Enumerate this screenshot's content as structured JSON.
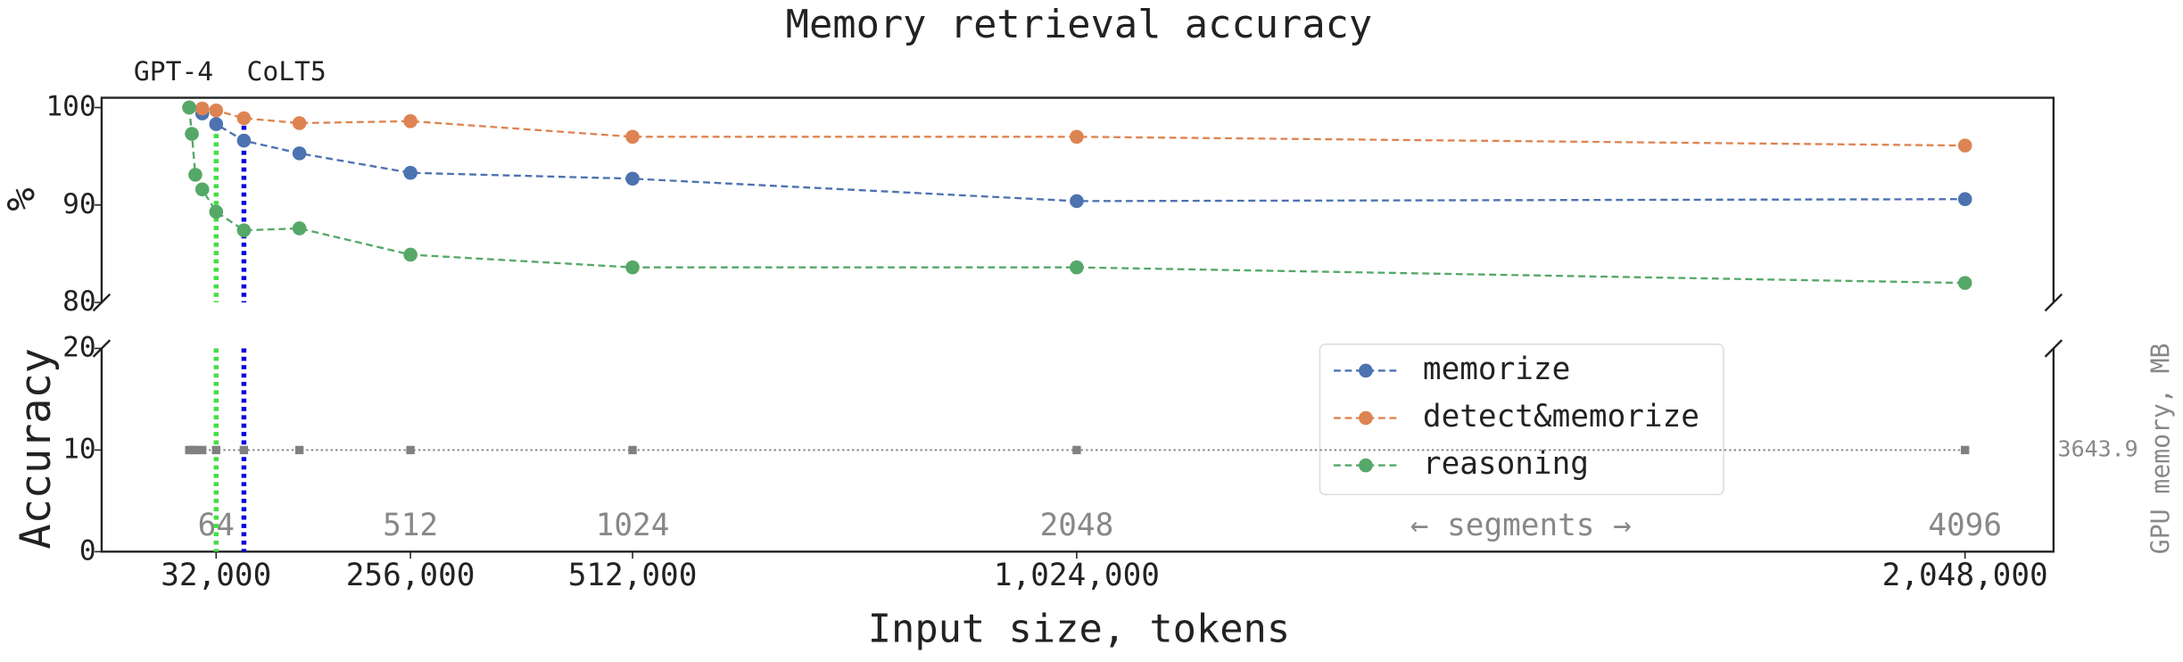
{
  "chart_data": [
    {
      "type": "line",
      "title": "Memory retrieval accuracy",
      "ylabel": "%",
      "xlim": [
        -100000,
        2150000
      ],
      "ylim": [
        80,
        101
      ],
      "yticks": [
        80,
        90,
        100
      ],
      "x": [
        1000,
        4000,
        8000,
        16000,
        32000,
        64000,
        128000,
        256000,
        512000,
        1024000,
        2048000
      ],
      "series": [
        {
          "name": "memorize",
          "color": "#4c72b0",
          "values": [
            100,
            null,
            null,
            99.4,
            98.3,
            96.6,
            95.3,
            93.3,
            92.7,
            90.4,
            90.6
          ]
        },
        {
          "name": "detect&memorize",
          "color": "#dd8452",
          "values": [
            100,
            null,
            null,
            99.9,
            99.7,
            98.9,
            98.4,
            98.6,
            97.0,
            97.0,
            96.1
          ]
        },
        {
          "name": "reasoning",
          "color": "#55a868",
          "values": [
            100,
            97.3,
            93.1,
            91.6,
            89.3,
            87.4,
            87.6,
            84.9,
            83.6,
            83.6,
            82.0
          ]
        }
      ],
      "annotations": [
        {
          "label": "GPT-4",
          "x": 32000,
          "color": "#44dd44"
        },
        {
          "label": "CoLT5",
          "x": 64000,
          "color": "#0000dd"
        }
      ]
    },
    {
      "type": "line",
      "ylabel": "Accuracy",
      "xlabel": "Input size, tokens",
      "y2label": "GPU memory, MB",
      "xlim": [
        -100000,
        2150000
      ],
      "ylim": [
        0,
        20
      ],
      "yticks": [
        0,
        10,
        20
      ],
      "xticks": [
        {
          "value": 32000,
          "label": "32,000"
        },
        {
          "value": 256000,
          "label": "256,000"
        },
        {
          "value": 512000,
          "label": "512,000"
        },
        {
          "value": 1024000,
          "label": "1,024,000"
        },
        {
          "value": 2048000,
          "label": "2,048,000"
        }
      ],
      "segment_ticks": [
        {
          "value": 32000,
          "label": "64"
        },
        {
          "value": 256000,
          "label": "512"
        },
        {
          "value": 512000,
          "label": "1024"
        },
        {
          "value": 1024000,
          "label": "2048"
        },
        {
          "value": 2048000,
          "label": "4096"
        }
      ],
      "segments_label": "← segments →",
      "y2lim": [
        3623.9,
        3663.9
      ],
      "y2ticks": [
        3643.9
      ],
      "x": [
        1000,
        4000,
        8000,
        16000,
        32000,
        64000,
        128000,
        256000,
        512000,
        1024000,
        2048000
      ],
      "series": [
        {
          "color": "#808080",
          "axis": "y2",
          "values": [
            3643.9,
            3643.9,
            3643.9,
            3643.9,
            3643.9,
            3643.9,
            3643.9,
            3643.9,
            3643.9,
            3643.9,
            3643.9
          ]
        }
      ]
    }
  ]
}
